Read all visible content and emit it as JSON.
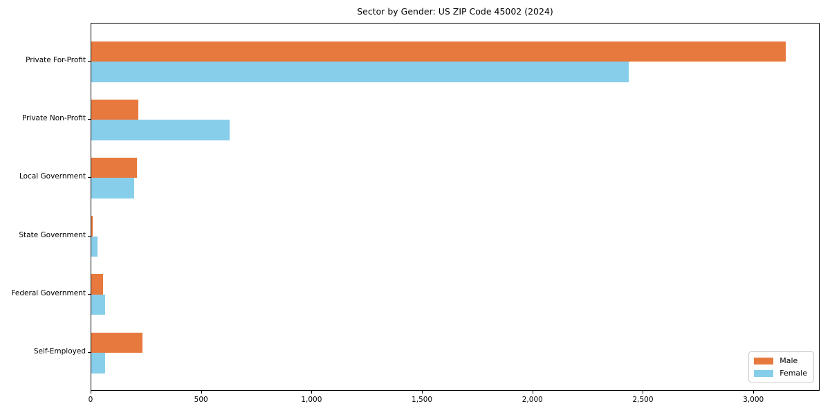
{
  "title": "Sector by Gender: US ZIP Code 45002 (2024)",
  "legend": {
    "position": "lower-right",
    "items": [
      {
        "label": "Male",
        "color": "#e8793e"
      },
      {
        "label": "Female",
        "color": "#87ceeb"
      }
    ]
  },
  "chart_data": {
    "type": "bar",
    "orientation": "horizontal",
    "title": "Sector by Gender: US ZIP Code 45002 (2024)",
    "categories": [
      "Private For-Profit",
      "Private Non-Profit",
      "Local Government",
      "State Government",
      "Federal Government",
      "Self-Employed"
    ],
    "series": [
      {
        "name": "Male",
        "color": "#e8793e",
        "values": [
          3145,
          214,
          208,
          5,
          53,
          232
        ]
      },
      {
        "name": "Female",
        "color": "#87ceeb",
        "values": [
          2432,
          625,
          193,
          28,
          62,
          63
        ]
      }
    ],
    "xlabel": "",
    "ylabel": "",
    "xlim": [
      0,
      3300
    ],
    "x_ticks": [
      0,
      500,
      1000,
      1500,
      2000,
      2500,
      3000
    ],
    "x_tick_labels": [
      "0",
      "500",
      "1,000",
      "1,500",
      "2,000",
      "2,500",
      "3,000"
    ],
    "grid": false,
    "background": "#ffffff",
    "legend_position": "lower right"
  }
}
